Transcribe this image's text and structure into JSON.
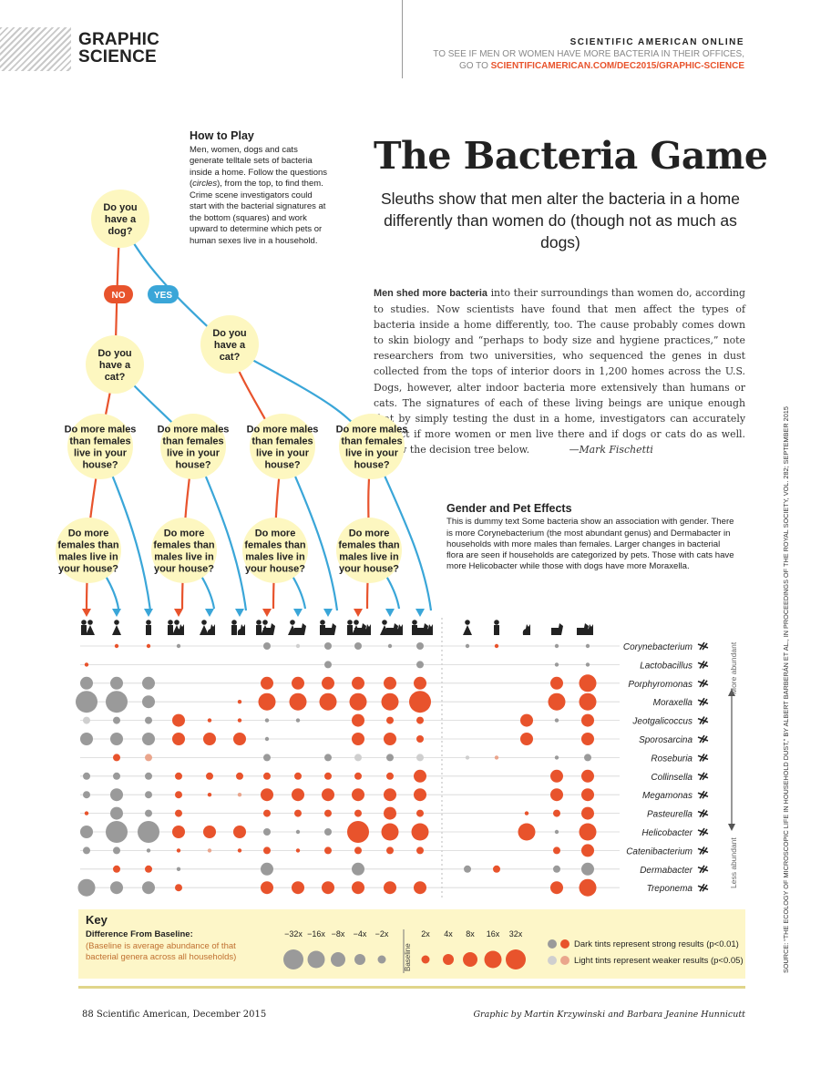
{
  "section": {
    "line1": "GRAPHIC",
    "line2": "SCIENCE"
  },
  "online": {
    "title": "SCIENTIFIC AMERICAN ONLINE",
    "line1": "TO SEE IF MEN OR WOMEN HAVE MORE BACTERIA IN THEIR OFFICES,",
    "prefix": "GO TO ",
    "url": "SCIENTIFICAMERICAN.COM/DEC2015/GRAPHIC-SCIENCE"
  },
  "howto": {
    "title": "How to Play",
    "text1": "Men, women, dogs and cats generate telltale sets of bacteria inside a home. Follow the questions (",
    "em": "circles",
    "text2": "), from the top, to find them. Crime scene investigators could start with the bacterial signatures at the bottom (squares) and work upward to determine which pets or human sexes live in a household."
  },
  "headline": "The Bacteria Game",
  "subhead": "Sleuths show that men alter the bacteria in a home differently than women do (though not as much as dogs)",
  "article": {
    "lead": "Men shed more bacteria",
    "text": " into their surroundings than women do, according to studies. Now scientists have found that men affect the types of bacteria inside a home differently, too. The cause probably comes down to skin biology and “perhaps to body size and hygiene practices,” note researchers from two universities, who sequenced the genes in dust collected from the tops of interior doors in 1,200 homes across the U.S. Dogs, however, alter indoor bacteria more extensively than humans or cats. The signatures of each of these living beings are unique enough that by simply testing the dust in a home, investigators can accurately predict if more women or men live there and if dogs or cats do as well. Follow the decision tree below.",
    "byline": "—Mark Fischetti"
  },
  "tree": {
    "q_dog": "Do you have a dog?",
    "q_cat": "Do you have a cat?",
    "q_males": "Do more males than females live in your house?",
    "q_females": "Do more females than males live in your house?",
    "no": "NO",
    "yes": "YES"
  },
  "gender_effects": {
    "title": "Gender and Pet Effects",
    "text": "This is dummy text Some bacteria show an association with gender. There is more Corynebacterium (the most abundant genus) and Dermabacter in households with more males than females. Larger changes in bacterial flora are seen if households are categorized by pets. Those with cats have more Helicobacter while those with dogs have more Moraxella."
  },
  "bacteria": [
    "Corynebacterium",
    "Lactobacillus",
    "Porphyromonas",
    "Moraxella",
    "Jeotgalicoccus",
    "Sporosarcina",
    "Roseburia",
    "Collinsella",
    "Megamonas",
    "Pasteurella",
    "Helicobacter",
    "Catenibacterium",
    "Dermabacter",
    "Treponema"
  ],
  "axis": {
    "more": "More abundant",
    "less": "Less abundant"
  },
  "key": {
    "title": "Key",
    "subtitle": "Difference From Baseline:",
    "note": "(Baseline is average abundance of that bacterial genera across all households)",
    "baseline": "Baseline",
    "scale": [
      "−32x",
      "−16x",
      "−8x",
      "−4x",
      "−2x",
      "2x",
      "4x",
      "8x",
      "16x",
      "32x"
    ],
    "dark": "Dark tints represent strong results (p<0.01)",
    "light": "Light tints represent weaker results (p<0.05)"
  },
  "colors": {
    "red": "#e8532c",
    "gray": "#9a9a9a",
    "light_red": "#eaa58c",
    "light_gray": "#cfcfcf",
    "yellow": "#fdf7c0",
    "blue": "#3aa6d8"
  },
  "footer": {
    "left": "88 Scientific American, December 2015",
    "right": "Graphic by Martin Krzywinski and Barbara Jeanine Hunnicutt"
  },
  "source": "SOURCE: “THE ECOLOGY OF MICROSCOPIC LIFE IN HOUSEHOLD DUST,” BY ALBERT BARBERÁN ET AL., IN PROCEEDINGS OF THE ROYAL SOCIETY, VOL. 282; SEPTEMBER 2015",
  "matrix": [
    [
      [
        0,
        0,
        0
      ],
      [
        1,
        "r",
        1
      ],
      [
        1,
        "r",
        1
      ],
      [
        1,
        "g",
        1
      ],
      [
        0,
        0,
        0
      ],
      [
        0,
        0,
        0
      ],
      [
        2,
        "g",
        1
      ],
      [
        1,
        "g",
        2
      ],
      [
        2,
        "g",
        1
      ],
      [
        2,
        "g",
        1
      ],
      [
        1,
        "g",
        1
      ],
      [
        2,
        "g",
        1
      ],
      [
        1,
        "g",
        1
      ],
      [
        1,
        "r",
        1
      ],
      [
        0,
        0,
        0
      ],
      [
        1,
        "g",
        1
      ],
      [
        1,
        "g",
        1
      ]
    ],
    [
      [
        1,
        "r",
        1
      ],
      [
        0,
        0,
        0
      ],
      [
        0,
        0,
        0
      ],
      [
        0,
        0,
        0
      ],
      [
        0,
        0,
        0
      ],
      [
        0,
        0,
        0
      ],
      [
        0,
        0,
        0
      ],
      [
        0,
        0,
        0
      ],
      [
        2,
        "g",
        1
      ],
      [
        0,
        0,
        0
      ],
      [
        0,
        0,
        0
      ],
      [
        2,
        "g",
        1
      ],
      [
        0,
        0,
        0
      ],
      [
        0,
        0,
        0
      ],
      [
        0,
        0,
        0
      ],
      [
        1,
        "g",
        1
      ],
      [
        1,
        "g",
        1
      ]
    ],
    [
      [
        3,
        "g",
        1
      ],
      [
        3,
        "g",
        1
      ],
      [
        3,
        "g",
        1
      ],
      [
        0,
        0,
        0
      ],
      [
        0,
        0,
        0
      ],
      [
        0,
        0,
        0
      ],
      [
        3,
        "r",
        1
      ],
      [
        3,
        "r",
        1
      ],
      [
        3,
        "r",
        1
      ],
      [
        3,
        "r",
        1
      ],
      [
        3,
        "r",
        1
      ],
      [
        3,
        "r",
        1
      ],
      [
        0,
        0,
        0
      ],
      [
        0,
        0,
        0
      ],
      [
        0,
        0,
        0
      ],
      [
        3,
        "r",
        1
      ],
      [
        4,
        "r",
        1
      ]
    ],
    [
      [
        5,
        "g",
        1
      ],
      [
        5,
        "g",
        1
      ],
      [
        3,
        "g",
        1
      ],
      [
        0,
        0,
        0
      ],
      [
        0,
        0,
        0
      ],
      [
        1,
        "r",
        1
      ],
      [
        4,
        "r",
        1
      ],
      [
        4,
        "r",
        1
      ],
      [
        4,
        "r",
        1
      ],
      [
        4,
        "r",
        1
      ],
      [
        4,
        "r",
        1
      ],
      [
        5,
        "r",
        1
      ],
      [
        0,
        0,
        0
      ],
      [
        0,
        0,
        0
      ],
      [
        0,
        0,
        0
      ],
      [
        4,
        "r",
        1
      ],
      [
        4,
        "r",
        1
      ]
    ],
    [
      [
        2,
        "g",
        2
      ],
      [
        2,
        "g",
        1
      ],
      [
        2,
        "g",
        1
      ],
      [
        3,
        "r",
        1
      ],
      [
        1,
        "r",
        1
      ],
      [
        1,
        "r",
        1
      ],
      [
        1,
        "g",
        1
      ],
      [
        1,
        "g",
        1
      ],
      [
        0,
        0,
        0
      ],
      [
        3,
        "r",
        1
      ],
      [
        2,
        "r",
        1
      ],
      [
        2,
        "r",
        1
      ],
      [
        0,
        0,
        0
      ],
      [
        0,
        0,
        0
      ],
      [
        3,
        "r",
        1
      ],
      [
        1,
        "g",
        1
      ],
      [
        3,
        "r",
        1
      ]
    ],
    [
      [
        3,
        "g",
        1
      ],
      [
        3,
        "g",
        1
      ],
      [
        3,
        "g",
        1
      ],
      [
        3,
        "r",
        1
      ],
      [
        3,
        "r",
        1
      ],
      [
        3,
        "r",
        1
      ],
      [
        1,
        "g",
        1
      ],
      [
        0,
        0,
        0
      ],
      [
        0,
        0,
        0
      ],
      [
        3,
        "r",
        1
      ],
      [
        3,
        "r",
        1
      ],
      [
        2,
        "r",
        1
      ],
      [
        0,
        0,
        0
      ],
      [
        0,
        0,
        0
      ],
      [
        3,
        "r",
        1
      ],
      [
        0,
        0,
        0
      ],
      [
        3,
        "r",
        1
      ]
    ],
    [
      [
        0,
        0,
        0
      ],
      [
        2,
        "r",
        1
      ],
      [
        2,
        "r",
        2
      ],
      [
        0,
        0,
        0
      ],
      [
        0,
        0,
        0
      ],
      [
        0,
        0,
        0
      ],
      [
        2,
        "g",
        1
      ],
      [
        0,
        0,
        0
      ],
      [
        2,
        "g",
        1
      ],
      [
        2,
        "g",
        2
      ],
      [
        2,
        "g",
        1
      ],
      [
        2,
        "g",
        2
      ],
      [
        1,
        "g",
        2
      ],
      [
        1,
        "r",
        2
      ],
      [
        0,
        0,
        0
      ],
      [
        1,
        "g",
        1
      ],
      [
        2,
        "g",
        1
      ]
    ],
    [
      [
        2,
        "g",
        1
      ],
      [
        2,
        "g",
        1
      ],
      [
        2,
        "g",
        1
      ],
      [
        2,
        "r",
        1
      ],
      [
        2,
        "r",
        1
      ],
      [
        2,
        "r",
        1
      ],
      [
        2,
        "r",
        1
      ],
      [
        2,
        "r",
        1
      ],
      [
        2,
        "r",
        1
      ],
      [
        2,
        "r",
        1
      ],
      [
        2,
        "r",
        1
      ],
      [
        3,
        "r",
        1
      ],
      [
        0,
        0,
        0
      ],
      [
        0,
        0,
        0
      ],
      [
        0,
        0,
        0
      ],
      [
        3,
        "r",
        1
      ],
      [
        3,
        "r",
        1
      ]
    ],
    [
      [
        2,
        "g",
        1
      ],
      [
        3,
        "g",
        1
      ],
      [
        2,
        "g",
        1
      ],
      [
        2,
        "r",
        1
      ],
      [
        1,
        "r",
        1
      ],
      [
        1,
        "r",
        2
      ],
      [
        3,
        "r",
        1
      ],
      [
        3,
        "r",
        1
      ],
      [
        3,
        "r",
        1
      ],
      [
        3,
        "r",
        1
      ],
      [
        3,
        "r",
        1
      ],
      [
        3,
        "r",
        1
      ],
      [
        0,
        0,
        0
      ],
      [
        0,
        0,
        0
      ],
      [
        0,
        0,
        0
      ],
      [
        3,
        "r",
        1
      ],
      [
        3,
        "r",
        1
      ]
    ],
    [
      [
        1,
        "r",
        1
      ],
      [
        3,
        "g",
        1
      ],
      [
        2,
        "g",
        1
      ],
      [
        2,
        "r",
        1
      ],
      [
        0,
        0,
        0
      ],
      [
        0,
        0,
        0
      ],
      [
        2,
        "r",
        1
      ],
      [
        2,
        "r",
        1
      ],
      [
        2,
        "r",
        1
      ],
      [
        2,
        "r",
        1
      ],
      [
        3,
        "r",
        1
      ],
      [
        2,
        "r",
        1
      ],
      [
        0,
        0,
        0
      ],
      [
        0,
        0,
        0
      ],
      [
        1,
        "r",
        1
      ],
      [
        2,
        "r",
        1
      ],
      [
        3,
        "r",
        1
      ]
    ],
    [
      [
        3,
        "g",
        1
      ],
      [
        5,
        "g",
        1
      ],
      [
        5,
        "g",
        1
      ],
      [
        3,
        "r",
        1
      ],
      [
        3,
        "r",
        1
      ],
      [
        3,
        "r",
        1
      ],
      [
        2,
        "g",
        1
      ],
      [
        1,
        "g",
        1
      ],
      [
        2,
        "g",
        1
      ],
      [
        5,
        "r",
        1
      ],
      [
        4,
        "r",
        1
      ],
      [
        4,
        "r",
        1
      ],
      [
        0,
        0,
        0
      ],
      [
        0,
        0,
        0
      ],
      [
        4,
        "r",
        1
      ],
      [
        1,
        "g",
        1
      ],
      [
        4,
        "r",
        1
      ]
    ],
    [
      [
        2,
        "g",
        1
      ],
      [
        2,
        "g",
        1
      ],
      [
        1,
        "g",
        1
      ],
      [
        1,
        "r",
        1
      ],
      [
        1,
        "r",
        2
      ],
      [
        1,
        "r",
        1
      ],
      [
        2,
        "r",
        1
      ],
      [
        1,
        "r",
        1
      ],
      [
        2,
        "r",
        1
      ],
      [
        2,
        "r",
        1
      ],
      [
        2,
        "r",
        1
      ],
      [
        2,
        "r",
        1
      ],
      [
        0,
        0,
        0
      ],
      [
        0,
        0,
        0
      ],
      [
        0,
        0,
        0
      ],
      [
        2,
        "r",
        1
      ],
      [
        3,
        "r",
        1
      ]
    ],
    [
      [
        0,
        0,
        0
      ],
      [
        2,
        "r",
        1
      ],
      [
        2,
        "r",
        1
      ],
      [
        1,
        "g",
        1
      ],
      [
        0,
        0,
        0
      ],
      [
        0,
        0,
        0
      ],
      [
        3,
        "g",
        1
      ],
      [
        0,
        0,
        0
      ],
      [
        0,
        0,
        0
      ],
      [
        3,
        "g",
        1
      ],
      [
        0,
        0,
        0
      ],
      [
        0,
        0,
        0
      ],
      [
        2,
        "g",
        1
      ],
      [
        2,
        "r",
        1
      ],
      [
        0,
        0,
        0
      ],
      [
        2,
        "g",
        1
      ],
      [
        3,
        "g",
        1
      ]
    ],
    [
      [
        4,
        "g",
        1
      ],
      [
        3,
        "g",
        1
      ],
      [
        3,
        "g",
        1
      ],
      [
        2,
        "r",
        1
      ],
      [
        0,
        0,
        0
      ],
      [
        0,
        0,
        0
      ],
      [
        3,
        "r",
        1
      ],
      [
        3,
        "r",
        1
      ],
      [
        3,
        "r",
        1
      ],
      [
        3,
        "r",
        1
      ],
      [
        3,
        "r",
        1
      ],
      [
        3,
        "r",
        1
      ],
      [
        0,
        0,
        0
      ],
      [
        0,
        0,
        0
      ],
      [
        0,
        0,
        0
      ],
      [
        3,
        "r",
        1
      ],
      [
        4,
        "r",
        1
      ]
    ]
  ]
}
